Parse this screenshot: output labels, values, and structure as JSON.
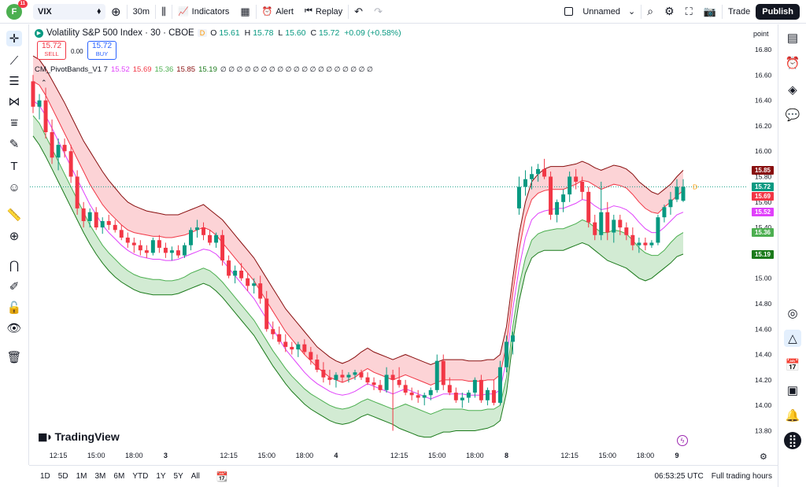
{
  "topbar": {
    "avatar_letter": "F",
    "notification_count": "11",
    "symbol": "VIX",
    "interval": "30m",
    "indicators_label": "Indicators",
    "alert_label": "Alert",
    "replay_label": "Replay",
    "layout_name": "Unnamed",
    "trade_label": "Trade",
    "publish_label": "Publish"
  },
  "legend": {
    "title": "Volatility S&P 500 Index · 30 · CBOE",
    "flag": "D",
    "open_label": "O",
    "open": "15.61",
    "high_label": "H",
    "high": "15.78",
    "low_label": "L",
    "low": "15.60",
    "close_label": "C",
    "close": "15.72",
    "change": "+0.09 (+0.58%)",
    "sell_price": "15.72",
    "sell_label": "SELL",
    "spread": "0.00",
    "buy_price": "15.72",
    "buy_label": "BUY",
    "indicator_name": "CM_PivotBands_V1 7",
    "ind_v1": "15.52",
    "ind_v2": "15.69",
    "ind_v3": "15.36",
    "ind_v4": "15.85",
    "ind_v5": "15.19",
    "ind_zeros": "∅ ∅ ∅ ∅ ∅ ∅ ∅ ∅ ∅ ∅ ∅ ∅ ∅ ∅ ∅ ∅ ∅ ∅ ∅"
  },
  "price_tags": [
    {
      "value": "15.85",
      "color": "#880e0e"
    },
    {
      "value": "15.72",
      "color": "#089981"
    },
    {
      "value": "15.69",
      "color": "#f23645"
    },
    {
      "value": "15.52",
      "color": "#e040fb"
    },
    {
      "value": "15.36",
      "color": "#4caf50"
    },
    {
      "value": "15.19",
      "color": "#1b7a1b"
    }
  ],
  "axis_unit": "point",
  "bottombar": {
    "ranges": [
      "1D",
      "5D",
      "1M",
      "3M",
      "6M",
      "YTD",
      "1Y",
      "5Y",
      "All"
    ],
    "clock": "06:53:25 UTC",
    "session": "Full trading hours"
  },
  "logo_text": "TradingView",
  "chart_data": {
    "type": "candlestick",
    "ylim": [
      13.7,
      16.9
    ],
    "y_ticks": [
      13.8,
      14.0,
      14.2,
      14.4,
      14.6,
      14.8,
      15.0,
      15.2,
      15.4,
      15.6,
      15.8,
      16.0,
      16.2,
      16.4,
      16.6,
      16.8
    ],
    "x_ticks": [
      {
        "label": "12:15",
        "i": 4
      },
      {
        "label": "15:00",
        "i": 10
      },
      {
        "label": "18:00",
        "i": 16
      },
      {
        "label": "3",
        "i": 21
      },
      {
        "label": "12:15",
        "i": 31
      },
      {
        "label": "15:00",
        "i": 37
      },
      {
        "label": "18:00",
        "i": 43
      },
      {
        "label": "4",
        "i": 48
      },
      {
        "label": "12:15",
        "i": 58
      },
      {
        "label": "15:00",
        "i": 64
      },
      {
        "label": "18:00",
        "i": 70
      },
      {
        "label": "8",
        "i": 75
      },
      {
        "label": "12:15",
        "i": 85
      },
      {
        "label": "15:00",
        "i": 91
      },
      {
        "label": "18:00",
        "i": 97
      },
      {
        "label": "9",
        "i": 102
      }
    ],
    "n_bars": 104,
    "candles": [
      [
        16.55,
        16.6,
        16.3,
        16.35
      ],
      [
        16.35,
        16.45,
        16.25,
        16.4
      ],
      [
        16.4,
        16.5,
        16.1,
        16.15
      ],
      [
        16.15,
        16.25,
        15.9,
        15.95
      ],
      [
        15.95,
        16.1,
        15.85,
        16.05
      ],
      [
        16.05,
        16.1,
        15.95,
        16.0
      ],
      [
        16.0,
        16.05,
        15.75,
        15.8
      ],
      [
        15.8,
        15.85,
        15.5,
        15.55
      ],
      [
        15.55,
        15.6,
        15.4,
        15.45
      ],
      [
        15.45,
        15.55,
        15.4,
        15.52
      ],
      [
        15.52,
        15.56,
        15.38,
        15.4
      ],
      [
        15.4,
        15.48,
        15.35,
        15.45
      ],
      [
        15.45,
        15.5,
        15.38,
        15.42
      ],
      [
        15.42,
        15.46,
        15.36,
        15.38
      ],
      [
        15.38,
        15.42,
        15.3,
        15.32
      ],
      [
        15.32,
        15.36,
        15.24,
        15.28
      ],
      [
        15.28,
        15.32,
        15.2,
        15.26
      ],
      [
        15.26,
        15.3,
        15.18,
        15.22
      ],
      [
        15.22,
        15.26,
        15.16,
        15.2
      ],
      [
        15.2,
        15.32,
        15.18,
        15.3
      ],
      [
        15.3,
        15.34,
        15.2,
        15.24
      ],
      [
        15.24,
        15.28,
        15.16,
        15.2
      ],
      [
        15.2,
        15.25,
        15.14,
        15.22
      ],
      [
        15.22,
        15.26,
        15.16,
        15.18
      ],
      [
        15.18,
        15.28,
        15.16,
        15.26
      ],
      [
        15.26,
        15.4,
        15.22,
        15.38
      ],
      [
        15.38,
        15.46,
        15.32,
        15.4
      ],
      [
        15.4,
        15.44,
        15.3,
        15.34
      ],
      [
        15.34,
        15.38,
        15.26,
        15.28
      ],
      [
        15.28,
        15.36,
        15.24,
        15.34
      ],
      [
        15.34,
        15.38,
        15.1,
        15.14
      ],
      [
        15.14,
        15.18,
        15.0,
        15.02
      ],
      [
        15.02,
        15.1,
        14.96,
        15.06
      ],
      [
        15.06,
        15.12,
        14.98,
        15.0
      ],
      [
        15.0,
        15.04,
        14.9,
        14.94
      ],
      [
        14.94,
        15.0,
        14.88,
        14.96
      ],
      [
        14.96,
        15.02,
        14.8,
        14.84
      ],
      [
        14.84,
        14.9,
        14.58,
        14.6
      ],
      [
        14.6,
        14.66,
        14.52,
        14.56
      ],
      [
        14.56,
        14.62,
        14.48,
        14.5
      ],
      [
        14.5,
        14.56,
        14.42,
        14.46
      ],
      [
        14.46,
        14.5,
        14.4,
        14.44
      ],
      [
        14.44,
        14.5,
        14.38,
        14.48
      ],
      [
        14.48,
        14.52,
        14.4,
        14.42
      ],
      [
        14.42,
        14.46,
        14.32,
        14.36
      ],
      [
        14.36,
        14.4,
        14.26,
        14.28
      ],
      [
        14.28,
        14.34,
        14.18,
        14.22
      ],
      [
        14.22,
        14.28,
        14.16,
        14.2
      ],
      [
        14.2,
        14.26,
        14.14,
        14.24
      ],
      [
        14.24,
        14.28,
        14.18,
        14.22
      ],
      [
        14.22,
        14.26,
        14.18,
        14.24
      ],
      [
        14.24,
        14.28,
        14.2,
        14.26
      ],
      [
        14.26,
        14.28,
        14.2,
        14.22
      ],
      [
        14.22,
        14.26,
        14.16,
        14.18
      ],
      [
        14.18,
        14.22,
        14.12,
        14.16
      ],
      [
        14.16,
        14.2,
        14.1,
        14.12
      ],
      [
        14.12,
        14.3,
        14.1,
        14.24
      ],
      [
        14.24,
        14.28,
        13.8,
        14.2
      ],
      [
        14.2,
        14.3,
        14.14,
        14.16
      ],
      [
        14.16,
        14.2,
        14.08,
        14.1
      ],
      [
        14.1,
        14.14,
        14.04,
        14.08
      ],
      [
        14.08,
        14.12,
        14.02,
        14.06
      ],
      [
        14.06,
        14.1,
        14.0,
        14.08
      ],
      [
        14.08,
        14.14,
        14.04,
        14.12
      ],
      [
        14.12,
        14.4,
        14.1,
        14.35
      ],
      [
        14.35,
        14.4,
        14.12,
        14.16
      ],
      [
        14.16,
        14.22,
        14.08,
        14.1
      ],
      [
        14.1,
        14.14,
        14.02,
        14.04
      ],
      [
        14.04,
        14.1,
        13.98,
        14.06
      ],
      [
        14.06,
        14.12,
        14.02,
        14.1
      ],
      [
        14.1,
        14.22,
        14.06,
        14.2
      ],
      [
        14.2,
        14.24,
        14.02,
        14.04
      ],
      [
        14.04,
        14.14,
        14.0,
        14.12
      ],
      [
        14.12,
        14.2,
        14.0,
        14.02
      ],
      [
        14.02,
        14.35,
        14.0,
        14.3
      ],
      [
        14.3,
        14.55,
        14.26,
        14.5
      ],
      [
        14.5,
        14.58,
        14.4,
        14.55
      ],
      [
        15.55,
        15.8,
        15.5,
        15.72
      ],
      [
        15.72,
        15.85,
        15.65,
        15.78
      ],
      [
        15.78,
        15.88,
        15.7,
        15.82
      ],
      [
        15.82,
        15.9,
        15.76,
        15.86
      ],
      [
        15.86,
        15.94,
        15.78,
        15.8
      ],
      [
        15.8,
        15.84,
        15.46,
        15.5
      ],
      [
        15.5,
        15.62,
        15.44,
        15.6
      ],
      [
        15.6,
        15.7,
        15.52,
        15.66
      ],
      [
        15.66,
        15.84,
        15.6,
        15.8
      ],
      [
        15.8,
        15.86,
        15.7,
        15.76
      ],
      [
        15.76,
        15.8,
        15.62,
        15.68
      ],
      [
        15.68,
        15.72,
        15.4,
        15.44
      ],
      [
        15.44,
        15.5,
        15.3,
        15.34
      ],
      [
        15.34,
        15.76,
        15.3,
        15.52
      ],
      [
        15.52,
        15.6,
        15.3,
        15.36
      ],
      [
        15.36,
        15.5,
        15.28,
        15.46
      ],
      [
        15.46,
        15.5,
        15.34,
        15.4
      ],
      [
        15.4,
        15.44,
        15.3,
        15.34
      ],
      [
        15.34,
        15.4,
        15.22,
        15.26
      ],
      [
        15.26,
        15.32,
        15.2,
        15.28
      ],
      [
        15.28,
        15.32,
        15.22,
        15.26
      ],
      [
        15.26,
        15.3,
        15.24,
        15.28
      ],
      [
        15.28,
        15.5,
        15.26,
        15.48
      ],
      [
        15.48,
        15.58,
        15.44,
        15.56
      ],
      [
        15.56,
        15.68,
        15.5,
        15.62
      ],
      [
        15.62,
        15.78,
        15.6,
        15.72
      ],
      [
        15.61,
        15.78,
        15.6,
        15.72
      ]
    ],
    "bands": {
      "upper_outer": [
        16.75,
        16.72,
        16.65,
        16.56,
        16.47,
        16.38,
        16.28,
        16.18,
        16.08,
        16.0,
        15.92,
        15.84,
        15.77,
        15.71,
        15.65,
        15.6,
        15.57,
        15.55,
        15.53,
        15.52,
        15.51,
        15.5,
        15.5,
        15.5,
        15.52,
        15.54,
        15.56,
        15.58,
        15.54,
        15.5,
        15.46,
        15.4,
        15.34,
        15.28,
        15.22,
        15.16,
        15.08,
        15.0,
        14.92,
        14.84,
        14.76,
        14.7,
        14.64,
        14.58,
        14.52,
        14.46,
        14.42,
        14.38,
        14.35,
        14.33,
        14.35,
        14.38,
        14.42,
        14.45,
        14.42,
        14.4,
        14.38,
        14.36,
        14.38,
        14.4,
        14.38,
        14.36,
        14.34,
        14.32,
        14.34,
        14.36,
        14.36,
        14.36,
        14.36,
        14.35,
        14.35,
        14.35,
        14.36,
        14.36,
        14.4,
        14.62,
        15.0,
        15.35,
        15.6,
        15.76,
        15.82,
        15.86,
        15.88,
        15.88,
        15.88,
        15.89,
        15.9,
        15.92,
        15.9,
        15.87,
        15.85,
        15.87,
        15.89,
        15.88,
        15.86,
        15.82,
        15.76,
        15.72,
        15.68,
        15.66,
        15.7,
        15.74,
        15.8,
        15.85
      ],
      "upper_inner": [
        16.55,
        16.52,
        16.44,
        16.34,
        16.24,
        16.14,
        16.04,
        15.94,
        15.84,
        15.74,
        15.66,
        15.58,
        15.52,
        15.47,
        15.42,
        15.38,
        15.36,
        15.35,
        15.34,
        15.33,
        15.33,
        15.32,
        15.32,
        15.33,
        15.34,
        15.36,
        15.38,
        15.4,
        15.38,
        15.34,
        15.28,
        15.22,
        15.16,
        15.1,
        15.04,
        14.98,
        14.9,
        14.82,
        14.74,
        14.66,
        14.58,
        14.52,
        14.46,
        14.4,
        14.35,
        14.3,
        14.26,
        14.22,
        14.2,
        14.18,
        14.2,
        14.22,
        14.26,
        14.29,
        14.26,
        14.24,
        14.22,
        14.2,
        14.22,
        14.24,
        14.22,
        14.2,
        14.18,
        14.16,
        14.18,
        14.2,
        14.2,
        14.2,
        14.2,
        14.19,
        14.19,
        14.19,
        14.2,
        14.2,
        14.24,
        14.48,
        14.88,
        15.22,
        15.48,
        15.62,
        15.67,
        15.69,
        15.7,
        15.7,
        15.7,
        15.72,
        15.74,
        15.77,
        15.76,
        15.73,
        15.7,
        15.72,
        15.74,
        15.73,
        15.71,
        15.66,
        15.6,
        15.55,
        15.52,
        15.51,
        15.56,
        15.6,
        15.65,
        15.69
      ],
      "mid": [
        16.4,
        16.36,
        16.28,
        16.18,
        16.08,
        15.98,
        15.88,
        15.78,
        15.68,
        15.58,
        15.5,
        15.42,
        15.36,
        15.31,
        15.26,
        15.22,
        15.19,
        15.17,
        15.16,
        15.15,
        15.15,
        15.14,
        15.14,
        15.15,
        15.17,
        15.19,
        15.21,
        15.23,
        15.22,
        15.19,
        15.14,
        15.08,
        15.02,
        14.96,
        14.9,
        14.84,
        14.76,
        14.68,
        14.6,
        14.52,
        14.44,
        14.38,
        14.32,
        14.26,
        14.21,
        14.17,
        14.14,
        14.11,
        14.09,
        14.08,
        14.09,
        14.11,
        14.14,
        14.17,
        14.15,
        14.13,
        14.11,
        14.09,
        14.11,
        14.13,
        14.11,
        14.09,
        14.07,
        14.05,
        14.07,
        14.09,
        14.09,
        14.09,
        14.09,
        14.08,
        14.08,
        14.08,
        14.09,
        14.09,
        14.12,
        14.36,
        14.76,
        15.08,
        15.32,
        15.46,
        15.51,
        15.53,
        15.54,
        15.55,
        15.55,
        15.57,
        15.59,
        15.62,
        15.61,
        15.57,
        15.54,
        15.55,
        15.57,
        15.56,
        15.54,
        15.5,
        15.44,
        15.39,
        15.36,
        15.36,
        15.4,
        15.45,
        15.5,
        15.52
      ],
      "lower_inner": [
        16.28,
        16.22,
        16.12,
        16.02,
        15.92,
        15.82,
        15.72,
        15.62,
        15.52,
        15.42,
        15.34,
        15.26,
        15.2,
        15.15,
        15.1,
        15.06,
        15.03,
        15.01,
        15.0,
        14.99,
        14.99,
        14.98,
        14.98,
        14.99,
        15.01,
        15.04,
        15.06,
        15.08,
        15.06,
        15.02,
        14.97,
        14.91,
        14.85,
        14.79,
        14.73,
        14.67,
        14.59,
        14.51,
        14.43,
        14.36,
        14.29,
        14.23,
        14.18,
        14.13,
        14.09,
        14.06,
        14.03,
        14.0,
        13.98,
        13.97,
        13.98,
        14.0,
        14.03,
        14.05,
        14.03,
        14.01,
        13.99,
        13.97,
        13.99,
        14.01,
        13.99,
        13.97,
        13.95,
        13.93,
        13.95,
        13.97,
        13.97,
        13.97,
        13.97,
        13.96,
        13.96,
        13.96,
        13.97,
        13.97,
        14.0,
        14.22,
        14.62,
        14.94,
        15.16,
        15.3,
        15.35,
        15.37,
        15.38,
        15.39,
        15.39,
        15.41,
        15.43,
        15.46,
        15.44,
        15.4,
        15.36,
        15.36,
        15.38,
        15.37,
        15.35,
        15.3,
        15.24,
        15.2,
        15.18,
        15.18,
        15.22,
        15.28,
        15.33,
        15.36
      ],
      "lower_outer": [
        16.12,
        16.05,
        15.96,
        15.86,
        15.76,
        15.66,
        15.56,
        15.46,
        15.36,
        15.27,
        15.19,
        15.12,
        15.06,
        15.01,
        14.97,
        14.94,
        14.91,
        14.89,
        14.88,
        14.87,
        14.87,
        14.87,
        14.87,
        14.88,
        14.9,
        14.92,
        14.94,
        14.96,
        14.94,
        14.9,
        14.85,
        14.79,
        14.73,
        14.67,
        14.61,
        14.55,
        14.47,
        14.39,
        14.31,
        14.24,
        14.17,
        14.11,
        14.06,
        14.01,
        13.97,
        13.94,
        13.91,
        13.88,
        13.86,
        13.85,
        13.86,
        13.88,
        13.91,
        13.93,
        13.91,
        13.89,
        13.87,
        13.85,
        13.82,
        13.8,
        13.78,
        13.76,
        13.75,
        13.75,
        13.77,
        13.79,
        13.79,
        13.8,
        13.8,
        13.8,
        13.8,
        13.81,
        13.82,
        13.84,
        13.88,
        14.1,
        14.5,
        14.82,
        15.04,
        15.16,
        15.2,
        15.22,
        15.22,
        15.22,
        15.22,
        15.24,
        15.26,
        15.28,
        15.26,
        15.22,
        15.18,
        15.14,
        15.12,
        15.1,
        15.08,
        15.04,
        15.0,
        14.98,
        15.0,
        15.04,
        15.08,
        15.12,
        15.17,
        15.19
      ]
    }
  }
}
